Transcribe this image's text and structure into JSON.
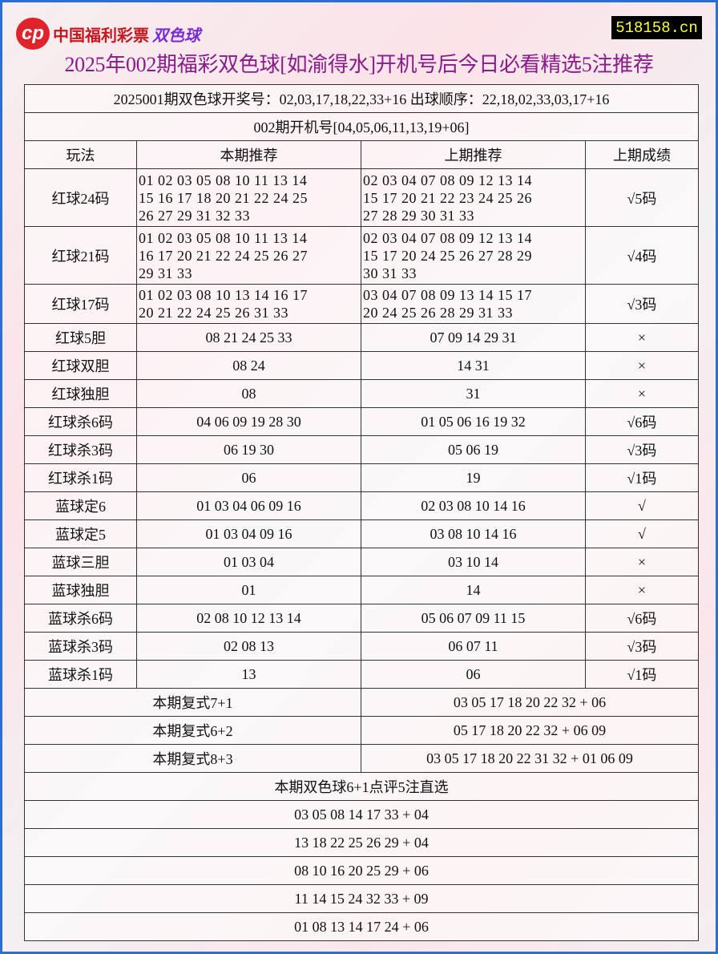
{
  "logo": {
    "text": "中国福利彩票",
    "text2": "双色球"
  },
  "site": "518158.cn",
  "title": "2025年002期福彩双色球[如渝得水]开机号后今日必看精选5注推荐",
  "info1": "2025001期双色球开奖号：02,03,17,18,22,33+16 出球顺序：22,18,02,33,03,17+16",
  "info2": "002期开机号[04,05,06,11,13,19+06]",
  "headers": [
    "玩法",
    "本期推荐",
    "上期推荐",
    "上期成绩"
  ],
  "rows": [
    {
      "name": "红球24码",
      "cur": [
        "01 02 03 05 08 10 11 13 14",
        "15 16 17 18 20 21 22 24 25",
        "26 27 29 31 32 33"
      ],
      "prev": [
        "02 03 04 07 08 09 12 13 14",
        "15 17 20 21 22 23 24 25 26",
        "27 28 29 30 31 33"
      ],
      "res": "√5码"
    },
    {
      "name": "红球21码",
      "cur": [
        "01 02 03 05 08 10 11 13 14",
        "16 17 20 21 22 24 25 26 27",
        "29 31 33"
      ],
      "prev": [
        "02 03 04 07 08 09 12 13 14",
        "15 17 20 24 25 26 27 28 29",
        "30 31 33"
      ],
      "res": "√4码"
    },
    {
      "name": "红球17码",
      "cur": [
        "01 02 03 08 10 13 14 16 17",
        "20 21 22 24 25 26 31 33"
      ],
      "prev": [
        "03 04 07 08 09 13 14 15 17",
        "20 24 25 26 28 29 31 33"
      ],
      "res": "√3码"
    },
    {
      "name": "红球5胆",
      "cur": "08 21 24 25 33",
      "prev": "07 09 14 29 31",
      "res": "×"
    },
    {
      "name": "红球双胆",
      "cur": "08 24",
      "prev": "14 31",
      "res": "×"
    },
    {
      "name": "红球独胆",
      "cur": "08",
      "prev": "31",
      "res": "×"
    },
    {
      "name": "红球杀6码",
      "cur": "04 06 09 19 28 30",
      "prev": "01 05 06 16 19 32",
      "res": "√6码"
    },
    {
      "name": "红球杀3码",
      "cur": "06 19 30",
      "prev": "05 06 19",
      "res": "√3码"
    },
    {
      "name": "红球杀1码",
      "cur": "06",
      "prev": "19",
      "res": "√1码"
    },
    {
      "name": "蓝球定6",
      "cur": "01 03 04 06 09 16",
      "prev": "02 03 08 10 14 16",
      "res": "√"
    },
    {
      "name": "蓝球定5",
      "cur": "01 03 04 09 16",
      "prev": "03 08 10 14 16",
      "res": "√"
    },
    {
      "name": "蓝球三胆",
      "cur": "01 03 04",
      "prev": "03 10 14",
      "res": "×"
    },
    {
      "name": "蓝球独胆",
      "cur": "01",
      "prev": "14",
      "res": "×"
    },
    {
      "name": "蓝球杀6码",
      "cur": "02 08 10 12 13 14",
      "prev": "05 06 07 09 11 15",
      "res": "√6码"
    },
    {
      "name": "蓝球杀3码",
      "cur": "02 08 13",
      "prev": "06 07 11",
      "res": "√3码"
    },
    {
      "name": "蓝球杀1码",
      "cur": "13",
      "prev": "06",
      "res": "√1码"
    }
  ],
  "fushi": [
    {
      "name": "本期复式7+1",
      "nums": "03 05 17 18 20 22 32 + 06"
    },
    {
      "name": "本期复式6+2",
      "nums": "05 17 18 20 22 32 + 06 09"
    },
    {
      "name": "本期复式8+3",
      "nums": "03 05 17 18 20 22 31 32 + 01 06 09"
    }
  ],
  "picks_title": "本期双色球6+1点评5注直选",
  "picks": [
    "03 05 08 14 17 33 + 04",
    "13 18 22 25 26 29 + 04",
    "08 10 16 20 25 29 + 06",
    "11 14 15 24 32 33 + 09",
    "01 08 13 14 17 24 + 06"
  ]
}
